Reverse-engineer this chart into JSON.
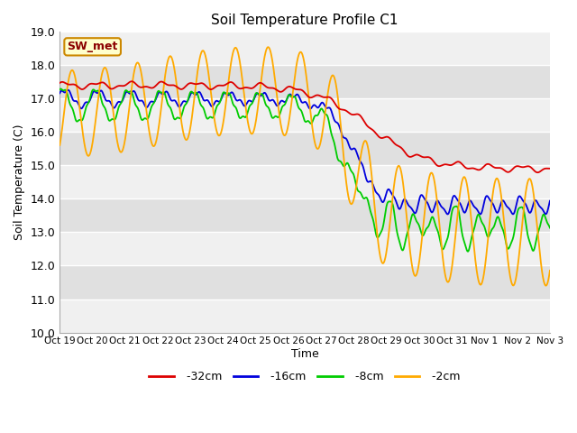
{
  "title": "Soil Temperature Profile C1",
  "xlabel": "Time",
  "ylabel": "Soil Temperature (C)",
  "ylim": [
    10.0,
    19.0
  ],
  "yticks": [
    10.0,
    11.0,
    12.0,
    13.0,
    14.0,
    15.0,
    16.0,
    17.0,
    18.0,
    19.0
  ],
  "xtick_labels": [
    "Oct 19",
    "Oct 20",
    "Oct 21",
    "Oct 22",
    "Oct 23",
    "Oct 24",
    "Oct 25",
    "Oct 26",
    "Oct 27",
    "Oct 28",
    "Oct 29",
    "Oct 30",
    "Oct 31",
    "Nov 1",
    "Nov 2",
    "Nov 3"
  ],
  "colors": {
    "-32cm": "#dd0000",
    "-16cm": "#0000dd",
    "-8cm": "#00cc00",
    "-2cm": "#ffaa00"
  },
  "legend_label": "SW_met",
  "legend_box_facecolor": "#ffffcc",
  "legend_box_edgecolor": "#cc8800",
  "background_color": "#ffffff",
  "plot_bg_color": "#e0e0e0",
  "band_color": "#f0f0f0",
  "n_points": 2000
}
